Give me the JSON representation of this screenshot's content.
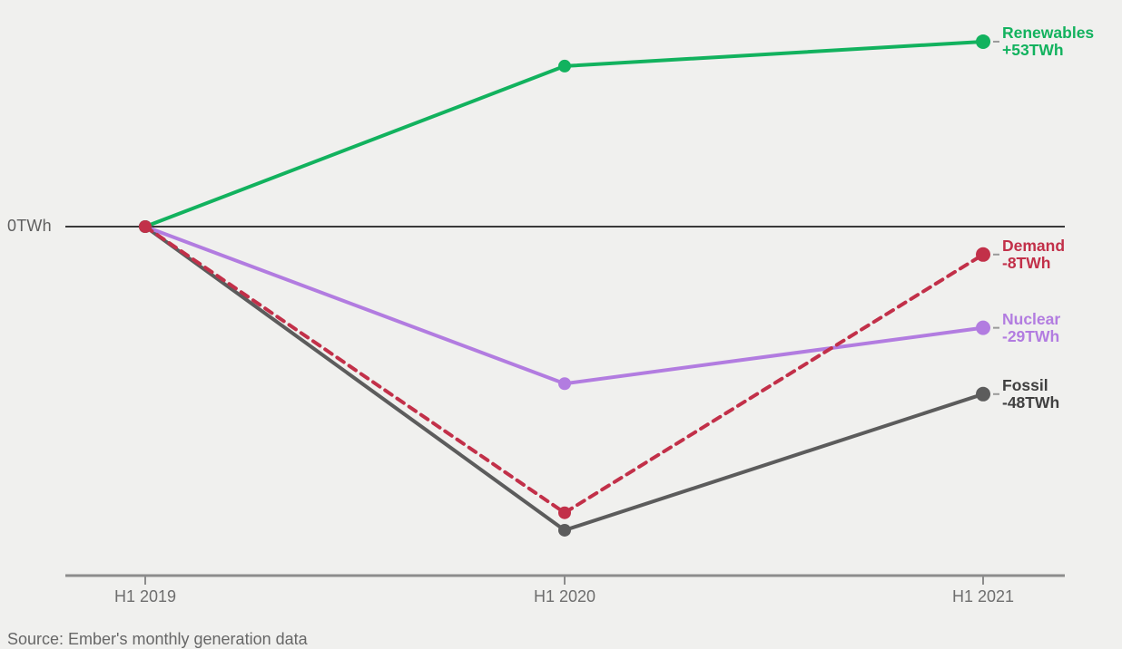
{
  "chart_data": {
    "type": "line",
    "title": "",
    "unit": "TWh",
    "x_categories": [
      "H1 2019",
      "H1 2020",
      "H1 2021"
    ],
    "zero_label": "0TWh",
    "ylim": [
      -100,
      60
    ],
    "grid": false,
    "legend_position": "right-of-line-ends",
    "series": [
      {
        "name": "Renewables",
        "delta_label": "+53TWh",
        "values": [
          0,
          46,
          53
        ],
        "color": "#12b25e",
        "dashed": false
      },
      {
        "name": "Demand",
        "delta_label": "-8TWh",
        "values": [
          0,
          -82,
          -8
        ],
        "color": "#c23049",
        "dashed": true
      },
      {
        "name": "Nuclear",
        "delta_label": "-29TWh",
        "values": [
          0,
          -45,
          -29
        ],
        "color": "#b27ce0",
        "dashed": false
      },
      {
        "name": "Fossil",
        "delta_label": "-48TWh",
        "values": [
          0,
          -87,
          -48
        ],
        "color": "#5c5c5c",
        "dashed": false,
        "label_color": "#404040"
      }
    ],
    "source": "Source: Ember's monthly generation data"
  },
  "style_colors": {
    "background": "#f0f0ee",
    "zero_line": "#3a3a3a",
    "axis_line": "#8c8c8c",
    "tick_label": "#6e6e6e",
    "label_dash": "#9a9a9a"
  }
}
